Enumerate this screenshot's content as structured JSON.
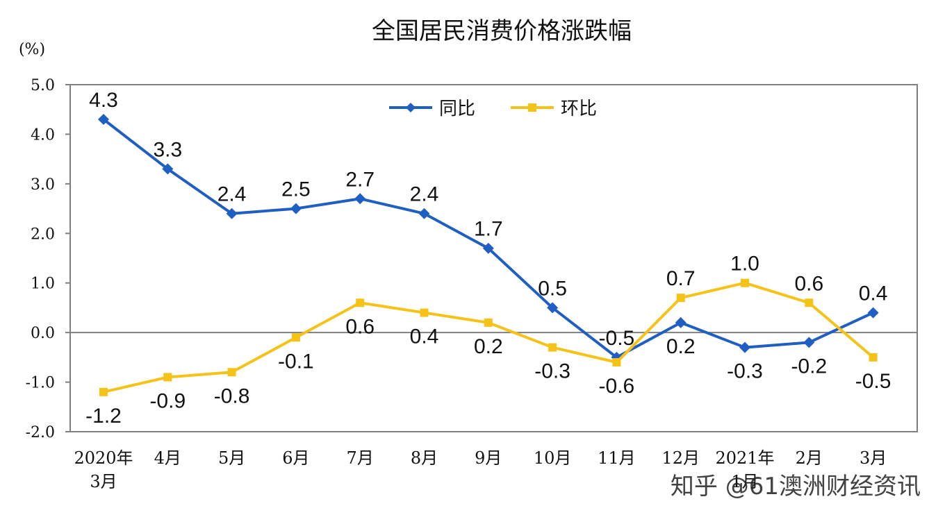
{
  "watermark": "知乎 @61澳洲财经资讯",
  "colors": {
    "yoy": "#1f5fc4",
    "mom": "#f5c218",
    "axis": "#7f7f7f",
    "text": "#111111"
  },
  "chart_data": {
    "type": "line",
    "title": "全国居民消费价格涨跌幅",
    "unit_label": "(%)",
    "ylim": [
      -2.0,
      5.0
    ],
    "yticks": [
      "5.0",
      "4.0",
      "3.0",
      "2.0",
      "1.0",
      "0.0",
      "-1.0",
      "-2.0"
    ],
    "ytick_values": [
      5,
      4,
      3,
      2,
      1,
      0,
      -1,
      -2
    ],
    "categories": [
      [
        "2020年",
        "3月"
      ],
      [
        "4月"
      ],
      [
        "5月"
      ],
      [
        "6月"
      ],
      [
        "7月"
      ],
      [
        "8月"
      ],
      [
        "9月"
      ],
      [
        "10月"
      ],
      [
        "11月"
      ],
      [
        "12月"
      ],
      [
        "2021年",
        "1月"
      ],
      [
        "2月"
      ],
      [
        "3月"
      ]
    ],
    "legend_position": "top-center",
    "grid": false,
    "series": [
      {
        "name": "同比",
        "marker": "diamond",
        "values": [
          4.3,
          3.3,
          2.4,
          2.5,
          2.7,
          2.4,
          1.7,
          0.5,
          -0.5,
          0.2,
          -0.3,
          -0.2,
          0.4
        ],
        "labels": [
          "4.3",
          "3.3",
          "2.4",
          "2.5",
          "2.7",
          "2.4",
          "1.7",
          "0.5",
          "-0.5",
          "0.2",
          "-0.3",
          "-0.2",
          "0.4"
        ],
        "label_pos": [
          "above",
          "above",
          "above",
          "above",
          "above",
          "above",
          "above",
          "above",
          "above",
          "below",
          "below",
          "below",
          "above"
        ]
      },
      {
        "name": "环比",
        "marker": "square",
        "values": [
          -1.2,
          -0.9,
          -0.8,
          -0.1,
          0.6,
          0.4,
          0.2,
          -0.3,
          -0.6,
          0.7,
          1.0,
          0.6,
          -0.5
        ],
        "labels": [
          "-1.2",
          "-0.9",
          "-0.8",
          "-0.1",
          "0.6",
          "0.4",
          "0.2",
          "-0.3",
          "-0.6",
          "0.7",
          "1.0",
          "0.6",
          "-0.5"
        ],
        "label_pos": [
          "below",
          "below",
          "below",
          "below",
          "below",
          "below",
          "below",
          "below",
          "below",
          "above",
          "above",
          "above",
          "below"
        ]
      }
    ]
  }
}
